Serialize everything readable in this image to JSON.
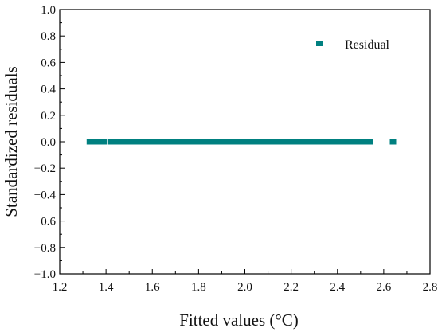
{
  "chart_data": {
    "type": "scatter",
    "title": "",
    "xlabel": "Fitted values (°C)",
    "ylabel": "Standardized residuals",
    "xlim": [
      1.2,
      2.8
    ],
    "ylim": [
      -1.0,
      1.0
    ],
    "xticks": [
      1.2,
      1.4,
      1.6,
      1.8,
      2.0,
      2.2,
      2.4,
      2.6,
      2.8
    ],
    "yticks": [
      -1.0,
      -0.8,
      -0.6,
      -0.4,
      -0.2,
      0.0,
      0.2,
      0.4,
      0.6,
      0.8,
      1.0
    ],
    "xtick_labels": [
      "1.2",
      "1.4",
      "1.6",
      "1.8",
      "2.0",
      "2.2",
      "2.4",
      "2.6",
      "2.8"
    ],
    "ytick_labels": [
      "−1.0",
      "−0.8",
      "−0.6",
      "−0.4",
      "−0.2",
      "0.0",
      "0.2",
      "0.4",
      "0.6",
      "0.8",
      "1.0"
    ],
    "grid": false,
    "legend": {
      "position": "top-right"
    },
    "series": [
      {
        "name": "Residual",
        "color": "#008080",
        "marker": "square",
        "x": [
          1.33,
          1.35,
          1.37,
          1.39,
          1.42,
          1.44,
          1.46,
          1.48,
          1.5,
          1.52,
          1.54,
          1.56,
          1.58,
          1.6,
          1.62,
          1.64,
          1.66,
          1.68,
          1.7,
          1.72,
          1.74,
          1.76,
          1.78,
          1.8,
          1.82,
          1.84,
          1.86,
          1.88,
          1.9,
          1.92,
          1.94,
          1.96,
          1.98,
          2.0,
          2.02,
          2.04,
          2.06,
          2.08,
          2.1,
          2.12,
          2.14,
          2.16,
          2.18,
          2.2,
          2.22,
          2.24,
          2.26,
          2.28,
          2.3,
          2.32,
          2.34,
          2.36,
          2.38,
          2.4,
          2.42,
          2.44,
          2.46,
          2.48,
          2.5,
          2.52,
          2.54,
          2.64
        ],
        "y": [
          0,
          0,
          0,
          0,
          0,
          0,
          0,
          0,
          0,
          0,
          0,
          0,
          0,
          0,
          0,
          0,
          0,
          0,
          0,
          0,
          0,
          0,
          0,
          0,
          0,
          0,
          0,
          0,
          0,
          0,
          0,
          0,
          0,
          0,
          0,
          0,
          0,
          0,
          0,
          0,
          0,
          0,
          0,
          0,
          0,
          0,
          0,
          0,
          0,
          0,
          0,
          0,
          0,
          0,
          0,
          0,
          0,
          0,
          0,
          0,
          0,
          0
        ]
      }
    ]
  }
}
